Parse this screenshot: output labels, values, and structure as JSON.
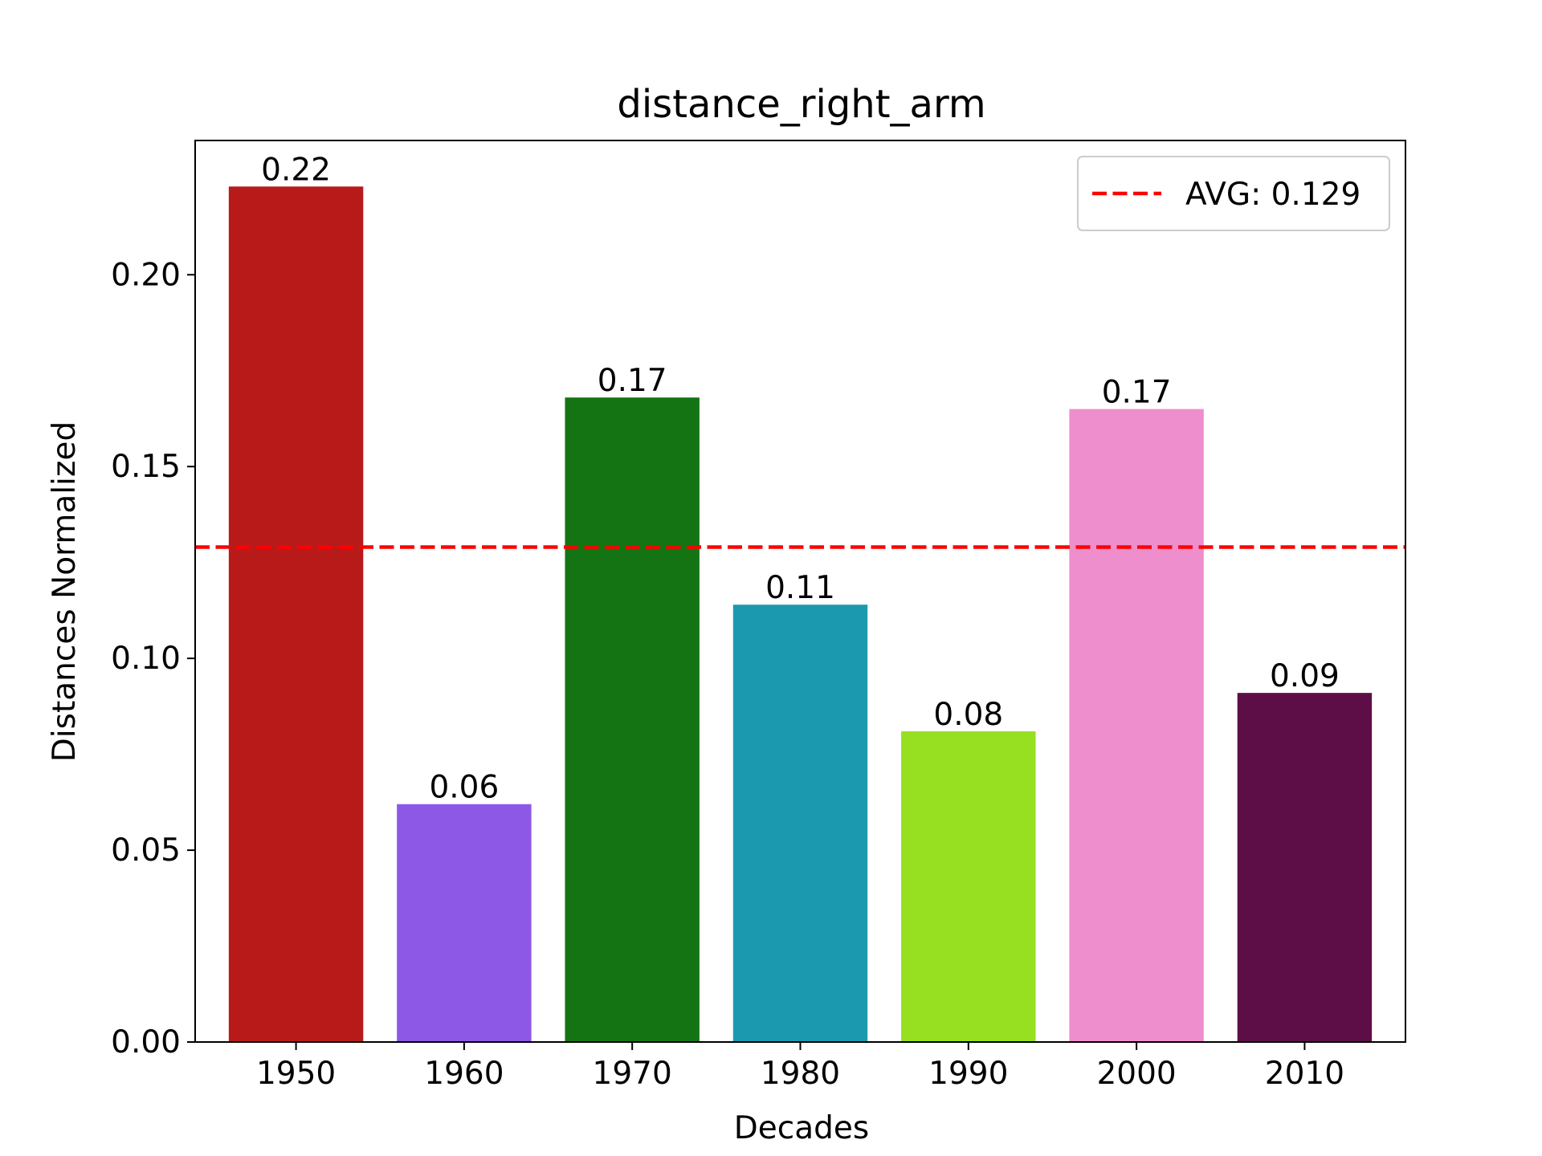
{
  "chart_data": {
    "type": "bar",
    "title": "distance_right_arm",
    "xlabel": "Decades",
    "ylabel": "Distances Normalized",
    "categories": [
      "1950",
      "1960",
      "1970",
      "1980",
      "1990",
      "2000",
      "2010"
    ],
    "values": [
      0.223,
      0.062,
      0.168,
      0.114,
      0.081,
      0.165,
      0.091
    ],
    "value_labels": [
      "0.22",
      "0.06",
      "0.17",
      "0.11",
      "0.08",
      "0.17",
      "0.09"
    ],
    "bar_colors": [
      "#b81a1a",
      "#8e58e6",
      "#147414",
      "#1b9aaf",
      "#96e021",
      "#ee8ecd",
      "#5e0e46"
    ],
    "ylim": [
      0,
      0.235
    ],
    "yticks": [
      0.0,
      0.05,
      0.1,
      0.15,
      0.2
    ],
    "ytick_labels": [
      "0.00",
      "0.05",
      "0.10",
      "0.15",
      "0.20"
    ],
    "avg_line": {
      "value": 0.129,
      "color": "#ff0000",
      "style": "dashed"
    },
    "legend": {
      "label": "AVG: 0.129",
      "placement": "top-right"
    },
    "grid": false
  }
}
